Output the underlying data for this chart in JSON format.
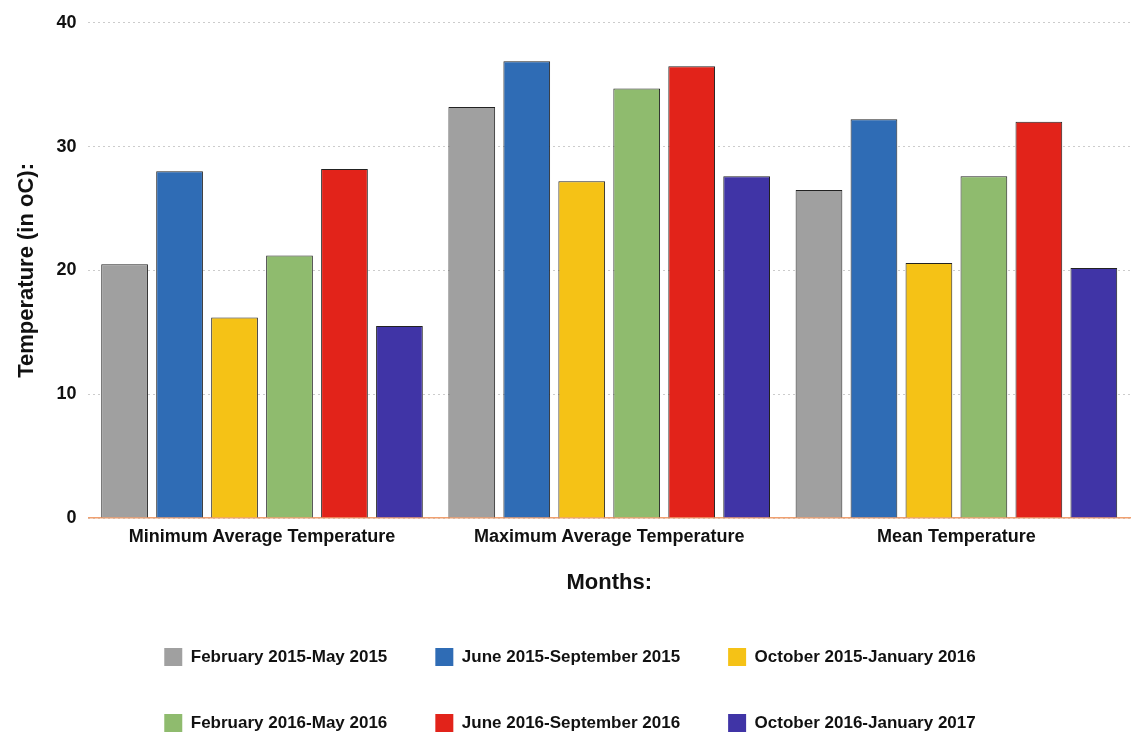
{
  "chart_data": {
    "type": "bar",
    "xlabel": "Months:",
    "ylabel": "Temperature (in oC):",
    "categories": [
      "Minimum Average Temperature",
      "Maximum Average Temperature",
      "Mean Temperature"
    ],
    "series": [
      {
        "name": "February 2015-May 2015",
        "color": "#a0a0a0",
        "values": [
          20.5,
          33.2,
          26.5
        ]
      },
      {
        "name": "June 2015-September 2015",
        "color": "#2f6cb5",
        "values": [
          28.0,
          36.9,
          32.2
        ]
      },
      {
        "name": "October 2015-January 2016",
        "color": "#f5c216",
        "values": [
          16.2,
          27.2,
          20.6
        ]
      },
      {
        "name": "February 2016-May 2016",
        "color": "#8fbb6e",
        "values": [
          21.2,
          34.7,
          27.6
        ]
      },
      {
        "name": "June 2016-September 2016",
        "color": "#e2231a",
        "values": [
          28.2,
          36.5,
          32.0
        ]
      },
      {
        "name": "October 2016-January 2017",
        "color": "#4034a6",
        "values": [
          15.5,
          27.6,
          20.2
        ]
      }
    ],
    "ylim": [
      0,
      40
    ],
    "yticks": [
      0,
      10,
      20,
      30,
      40
    ],
    "grid": "y",
    "legend": "bottom"
  }
}
